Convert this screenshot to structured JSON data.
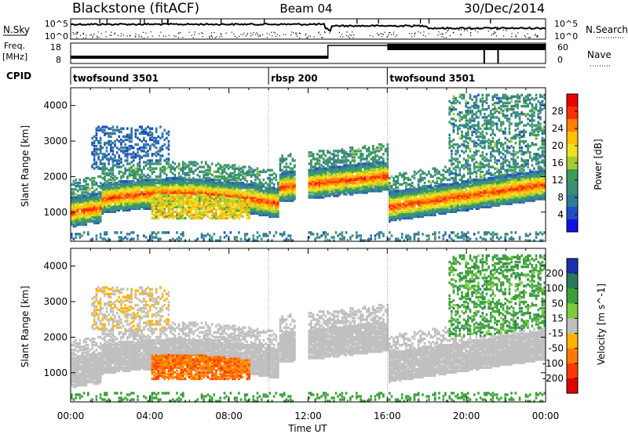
{
  "header": {
    "title": "Blackstone (fitACF)",
    "beam": "Beam 04",
    "date": "30/Dec/2014"
  },
  "status_panels": {
    "nsky_label": "N.Sky",
    "nsky_ticks": [
      "10^5",
      "10^0"
    ],
    "nsearch_label": "N.Search",
    "nsearch_ticks": [
      "10^5",
      "10^0"
    ],
    "freq_label_line1": "Freq.",
    "freq_label_line2": "[MHz]",
    "freq_ticks": [
      "18",
      "8"
    ],
    "nave_label": "Nave",
    "nave_ticks": [
      "60",
      "0"
    ],
    "cpid_label": "CPID",
    "cpid_segments": [
      {
        "label": "twofsound 3501",
        "start_hour": 0
      },
      {
        "label": "rbsp 200",
        "start_hour": 10
      },
      {
        "label": "twofsound 3501",
        "start_hour": 16
      }
    ]
  },
  "chart_data": [
    {
      "type": "heatmap",
      "parameter": "Power",
      "ylabel": "Slant Range [km]",
      "yticks": [
        1000,
        2000,
        3000,
        4000
      ],
      "ylim": [
        180,
        4500
      ],
      "colorbar_label": "Power [dB]",
      "colorbar_ticks": [
        4,
        8,
        12,
        16,
        20,
        24,
        28
      ],
      "colorbar_range": [
        0,
        32
      ],
      "colorscale": [
        "#1010e0",
        "#1d4fc0",
        "#2f7a9a",
        "#3a8f74",
        "#3d9c56",
        "#a8cc30",
        "#f0e020",
        "#ffc000",
        "#ff8000",
        "#ff3000",
        "#e80000"
      ]
    },
    {
      "type": "heatmap",
      "parameter": "Velocity",
      "ylabel": "Slant Range [km]",
      "yticks": [
        1000,
        2000,
        3000,
        4000
      ],
      "ylim": [
        180,
        4500
      ],
      "xlabel": "Time UT",
      "xticks": [
        "00:00",
        "04:00",
        "08:00",
        "12:00",
        "16:00",
        "20:00",
        "00:00"
      ],
      "xlim_hours": [
        0,
        24
      ],
      "colorbar_label": "Velocity [m s^-1]",
      "colorbar_ticks": [
        "200",
        "100",
        "50",
        "15",
        "-15",
        "-50",
        "-100",
        "-200"
      ],
      "colorscale": [
        "#1a2fb0",
        "#2a7a5a",
        "#3aa03a",
        "#7ccc3a",
        "#bfbfbf",
        "#ffb300",
        "#ff7a00",
        "#ff3a00",
        "#e00000"
      ]
    }
  ]
}
